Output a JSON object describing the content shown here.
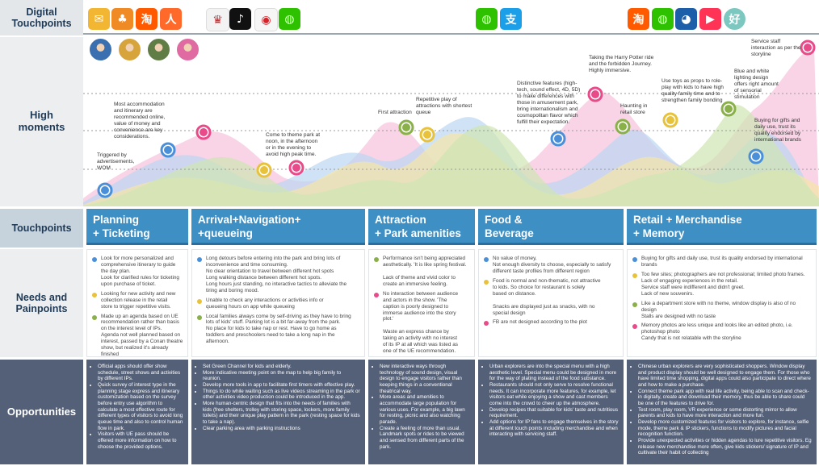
{
  "row_labels": {
    "digital": "Digital\nTouchpoints",
    "high": "High\nmoments",
    "touchpoints": "Touchpoints",
    "needs": "Needs and\nPainpoints",
    "opportunities": "Opportunities"
  },
  "app_icons": [
    {
      "name": "mail-app-icon",
      "glyph": "✉",
      "color": "#f2b632"
    },
    {
      "name": "sprout-app-icon",
      "glyph": "♣",
      "color": "#f08a24"
    },
    {
      "name": "taobao-app-icon",
      "glyph": "淘",
      "color": "#ff5a00"
    },
    {
      "name": "running-app-icon",
      "glyph": "人",
      "color": "#ff6a2b"
    },
    {
      "name": "shanghai-disney-app-icon",
      "glyph": "♛",
      "color": "#f3f3f3"
    },
    {
      "name": "tiktok-app-icon",
      "glyph": "♪",
      "color": "#111111"
    },
    {
      "name": "weibo-app-icon",
      "glyph": "◉",
      "color": "#f6f6f6"
    },
    {
      "name": "wechat-app-icon",
      "glyph": "◍",
      "color": "#2dc100"
    },
    {
      "name": "wechat-app-icon",
      "glyph": "◍",
      "color": "#2dc100"
    },
    {
      "name": "alipay-app-icon",
      "glyph": "支",
      "color": "#1a9fe8"
    },
    {
      "name": "taobao-app-icon",
      "glyph": "淘",
      "color": "#ff5a00"
    },
    {
      "name": "wechat-app-icon",
      "glyph": "◍",
      "color": "#2dc100"
    },
    {
      "name": "shanghai-disney-app-icon",
      "glyph": "◕",
      "color": "#1c5ea8"
    },
    {
      "name": "video-app-icon",
      "glyph": "▶",
      "color": "#ff3355"
    },
    {
      "name": "haole-app-icon",
      "glyph": "好",
      "color": "#7cc7c0"
    }
  ],
  "avatar_colors": [
    "#3a6fb0",
    "#d7a33b",
    "#5f7d45",
    "#e06aa2"
  ],
  "moment_annotations": [
    "Triggered by\nadvertisements,\nWOM",
    "Most accommodation\nand itinerary are\nrecommended online,\nvalue of money and\nconvenience are key\nconsiderations.",
    "Come to theme park at\nnoon, in the afternoon\nor in the evening to\navoid high peak time.",
    "First attraction",
    "Repetitive play of\nattractions with shortest\nqueue",
    "Distinctive features (high-\ntech, sound effect, 4D, 5D)\nto make differences with\nthose in amusement park,\nbring internationalism and\ncosmopolitan flavor which\nfulfill their expectation.",
    "Taking the Harry Potter ride\nand the forbidden Journey.\nHighly immersive.",
    "Haunting in\nretail store",
    "Use toys as props to role-\nplay with kids to have high\nquality family time and to\nstrengthen family bonding",
    "Blue and white\nlighting design\noffers right amount\nof sensorial\nstimulation",
    "Buying for gifts and\ndaily use, trust its\nquality endorsed by\ninternational brands",
    "Service staff\ninteraction as per the\nstoryline"
  ],
  "stages": [
    "Planning\n+ Ticketing",
    "Arrival+Navigation+\n+queueing",
    "Attraction\n+ Park amenities",
    "Food &\nBeverage",
    "Retail + Merchandise\n+ Memory"
  ],
  "needs": [
    [
      {
        "color": "#4a90d9",
        "text": "Look for more personalized and\ncomprehensive itinerary to guide\nthe day plan.\nLook for clarified rules for ticketing\nupon purchase of ticket."
      },
      {
        "color": "#e8c23a",
        "text": "Looking for new activity and new\ncollection release in the retail\nstore to trigger repetitive visits."
      },
      {
        "color": "#8ab04a",
        "text": "Made up an agenda based on UE\nrecommendation rather than basis\non the interest level of IPs.\nAgenda not well planned based on\ninterest, passed by a Conan theatre\nshow, but realized it's already\nfinished"
      }
    ],
    [
      {
        "color": "#4a90d9",
        "text": "Long detours before entering into the park and bring lots of\ninconvenience and time consuming.\nNo clear orientation to travel between different hot spots\nLong walking distance between different hot spots.\nLong hours just standing, no interactive tactics to alleviate the\ntiring and boring mood."
      },
      {
        "color": "#e8c23a",
        "text": "Unable to check any interactions or activities info or\nqueueing hours on app while queueing"
      },
      {
        "color": "#8ab04a",
        "text": "Local families always come by self-driving as they have to bring\nlots of kids' stuff. Parking lot is a bit far-away from the park.\nNo place for kids to take nap or rest. Have to go home as\ntoddlers and preschoolers need to take a long nap in the\nafternoon."
      }
    ],
    [
      {
        "color": "#8ab04a",
        "text": "Performance isn't being appreciated\naesthetically. 'It is  like spring festival.\n\nLack of theme and vivid color to\ncreate an immersive feeling."
      },
      {
        "color": "#e84a8a",
        "text": "No interaction between audience\nand actors in the show. 'The\ncaption is poorly designed to\nimmerse audience into the story\nplot.'\n\nWaste an express chance by\ntaking an activity with no interest\nof its IP at all which was listed as\none of the UE recommendation."
      }
    ],
    [
      {
        "color": "#4a90d9",
        "text": "No value of money,\nNot enough diversity to choose, especially to satisfy\ndifferent taste profiles from different region"
      },
      {
        "color": "#e8c23a",
        "text": "Food is normal and non-thematic, not attractive\nto kids. So choice for restaurant is solely\nbased on distance.\n\nSnacks are displayed just as snacks, with no\nspecial design"
      },
      {
        "color": "#e84a8a",
        "text": "FB are not designed according to the plot"
      }
    ],
    [
      {
        "color": "#4a90d9",
        "text": "Buying for gifts and daily use, trust its quality endorsed by international\nbrands"
      },
      {
        "color": "#e8c23a",
        "text": "Too few sites; photographers are not professional; limited photo frames.\nLack of engaging experiences in the retail.\nService staff were indifferent and didn't greet.\nLack of new souvenirs."
      },
      {
        "color": "#8ab04a",
        "text": "Like a department store with no theme, window display is also of no\ndesign\nStalls are designed with no taste"
      },
      {
        "color": "#e84a8a",
        "text": "Memory photos are less unique and looks like an edited photo, i.e.\nphotoshop photo\nCandy that is not relatable with the storyline"
      }
    ]
  ],
  "opportunities": [
    [
      "Official apps should offer show schedule, street shows and activities by different IPs.",
      "Quick survey of interest type in the planning stage express and itinerary customization based on the survey before entry use algorithm to calculate a most effective route for different types of visitors to avoid long queue time and also to control human flow in park.",
      "Visitors with UE pass should be offered more information on how to choose the provided options."
    ],
    [
      "Set Green Channel for kids and elderly.",
      "More indicative meeting point on the map to help big family to reunion.",
      "Develop more tools in app to facilitate first timers with effective play.",
      "Things to do while waiting such as live videos streaming in the park or other activities video production could be introduced in the app.",
      "More human-centric design that fits into the needs of families with kids (free shelters, trolley with storing space, lockers, more family toilets) and their unique play pattern in the park (resting space for kids to take a nap).",
      "Clear parking area with parking instructions"
    ],
    [
      "New interactive ways through technology of sound design, visual design to engage visitors rather than keeping things in a conventional theatrical way.",
      "More areas and amenities to accommodate large population for various uses. For example, a big lawn for resting, picnic and also watching parade.",
      "Create a feeling of more than usual. Landmark spots or rides to be viewed and sensed from different parts of the park."
    ],
    [
      "Urban explorers are into the special menu with a high aesthetic level. Special menu could be designed in more for the way of plating instead of the food substance.",
      "Restaurants should not only serve to resolve functional needs. It can incorporate more features, for example, let visitors eat while enjoying a show and cast members come into the crowd to cheer up the atmosphere.",
      "Develop recipes that suitable for kids' taste and nutritious requirement.",
      "Add options for IP fans to engage themselves in the story at different touch points including merchandise and when interacting with servicing staff."
    ],
    [
      "Chinese urban explorers are very sophisticated shoppers.  Window display and product display should be well designed to engage them. For those who have limited time shopping, digital apps could also participate to direct where and how to make a purchase.",
      "Connect theme park app with real life activity, being able to scan and check-in digitally, create and download their memory, thus be able to share could be one of the features to drive for.",
      "Test room, play room, VR experience or some distorting mirror to allow parents and kids to have more interaction and more fun.",
      "Develop more customized features for visitors to explore, for instance, selfie mode, theme park & IP stickers, functions to modify pictures and facial recognition function.",
      "Provide unexpected activities or hidden agendas to lure repetitive visitors. Eg release new merchandise more often, give kids stickers/ signature of IP and cultivate their habit of collecting"
    ]
  ]
}
